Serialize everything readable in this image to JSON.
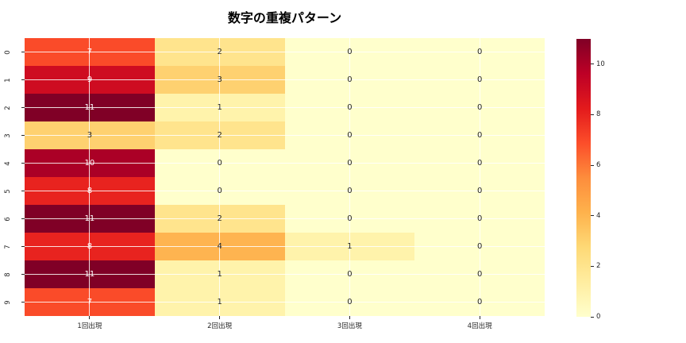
{
  "title": "数字の重複パターン",
  "chart_data": {
    "type": "heatmap",
    "title": "数字の重複パターン",
    "columns": [
      "1回出現",
      "2回出現",
      "3回出現",
      "4回出現"
    ],
    "rows": [
      "0",
      "1",
      "2",
      "3",
      "4",
      "5",
      "6",
      "7",
      "8",
      "9"
    ],
    "values": [
      [
        7,
        2,
        0,
        0
      ],
      [
        9,
        3,
        0,
        0
      ],
      [
        11,
        1,
        0,
        0
      ],
      [
        3,
        2,
        0,
        0
      ],
      [
        10,
        0,
        0,
        0
      ],
      [
        8,
        0,
        0,
        0
      ],
      [
        11,
        2,
        0,
        0
      ],
      [
        8,
        4,
        1,
        0
      ],
      [
        11,
        1,
        0,
        0
      ],
      [
        7,
        1,
        0,
        0
      ]
    ],
    "annotated": true,
    "vmin": 0,
    "vmax": 11,
    "colormap": "YlOrRd",
    "colorbar_ticks": [
      "0",
      "2",
      "4",
      "6",
      "8",
      "10"
    ],
    "legend_position": "colorbar-right",
    "grid": "white lines through cell centers"
  },
  "colors": {
    "background": "#ffffff",
    "annot_light": "#ffffff",
    "annot_dark": "#262626",
    "value_colors": {
      "0": "#ffffcc",
      "1": "#fff3ab",
      "2": "#ffe48d",
      "3": "#fed170",
      "4": "#feb450",
      "7": "#fa4b29",
      "8": "#e8231f",
      "9": "#ce0c21",
      "10": "#ab0026",
      "11": "#800026"
    },
    "colormap_stops": [
      "#ffffcc",
      "#ffeda0",
      "#fed976",
      "#feb24c",
      "#fd8d3c",
      "#fc4e2a",
      "#e31a1c",
      "#bd0026",
      "#800026"
    ]
  }
}
